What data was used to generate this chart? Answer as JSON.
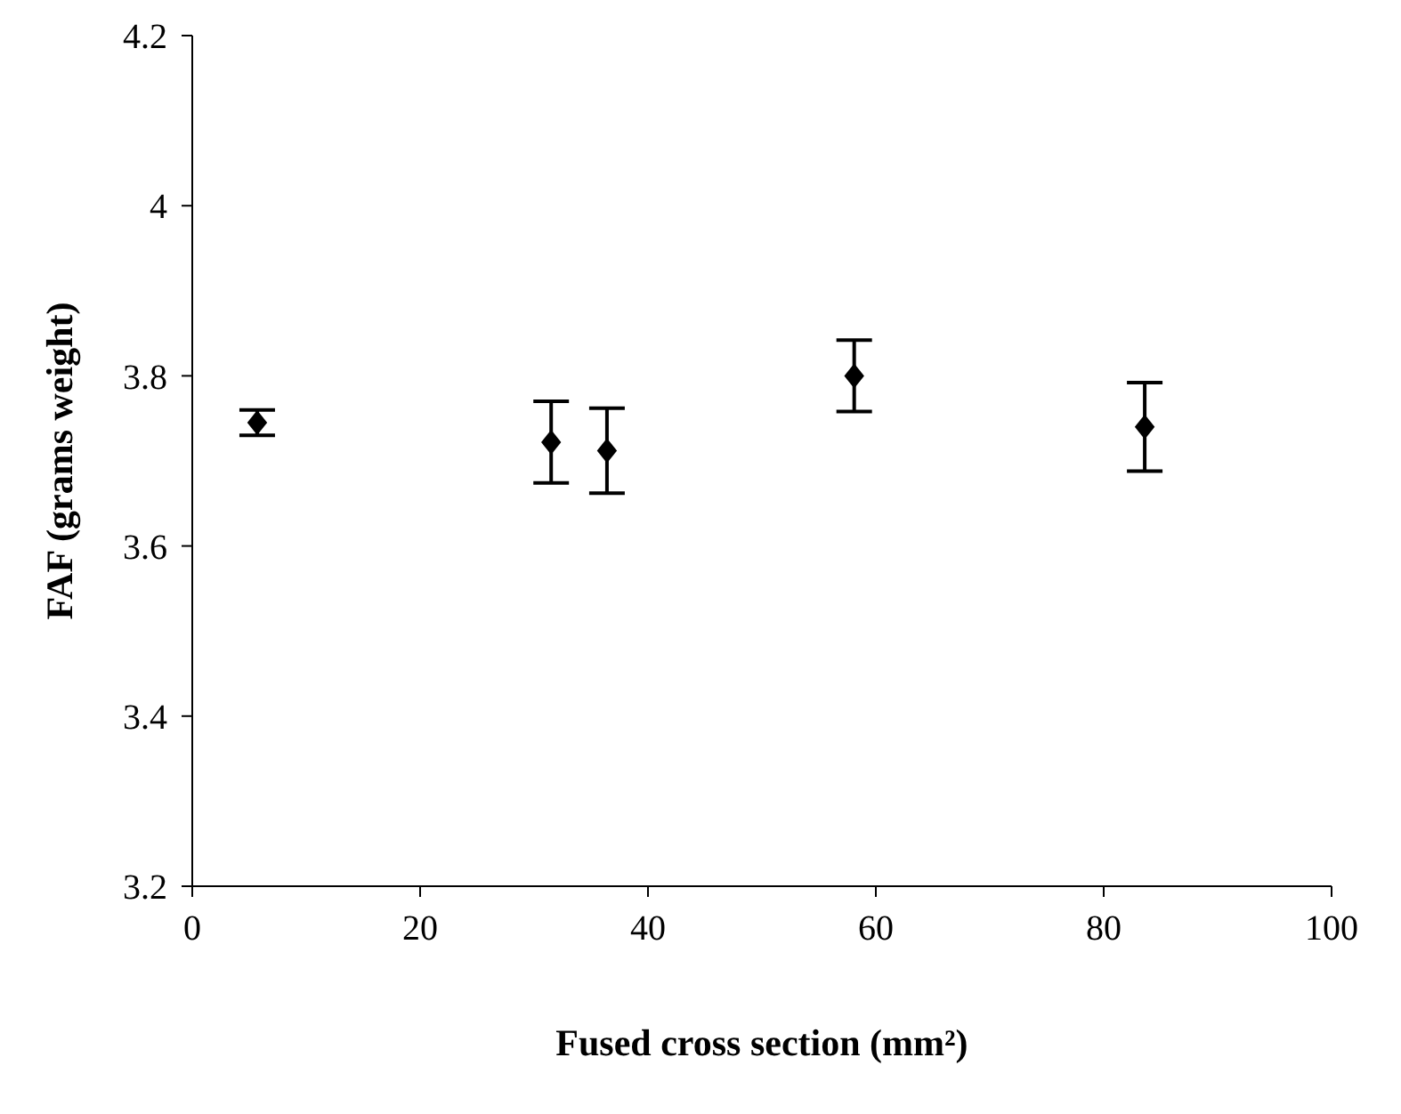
{
  "chart_data": {
    "type": "scatter",
    "xlabel": "Fused cross section (mm²)",
    "ylabel": "FAF (grams weight)",
    "x": [
      5.7,
      31.5,
      36.4,
      58.1,
      83.6
    ],
    "series": [
      {
        "color": "#000000",
        "values": [
          3.745,
          3.722,
          3.712,
          3.8,
          3.74
        ],
        "errors": [
          0.015,
          0.048,
          0.05,
          0.042,
          0.052
        ]
      }
    ],
    "xlim": [
      0,
      100
    ],
    "xticks": [
      0,
      20,
      40,
      60,
      80,
      100
    ],
    "ylim": [
      3.2,
      4.2
    ],
    "yticks": [
      3.2,
      3.4,
      3.6,
      3.8,
      4,
      4.2
    ],
    "grid": false,
    "legend": false,
    "marker": "diamond"
  }
}
